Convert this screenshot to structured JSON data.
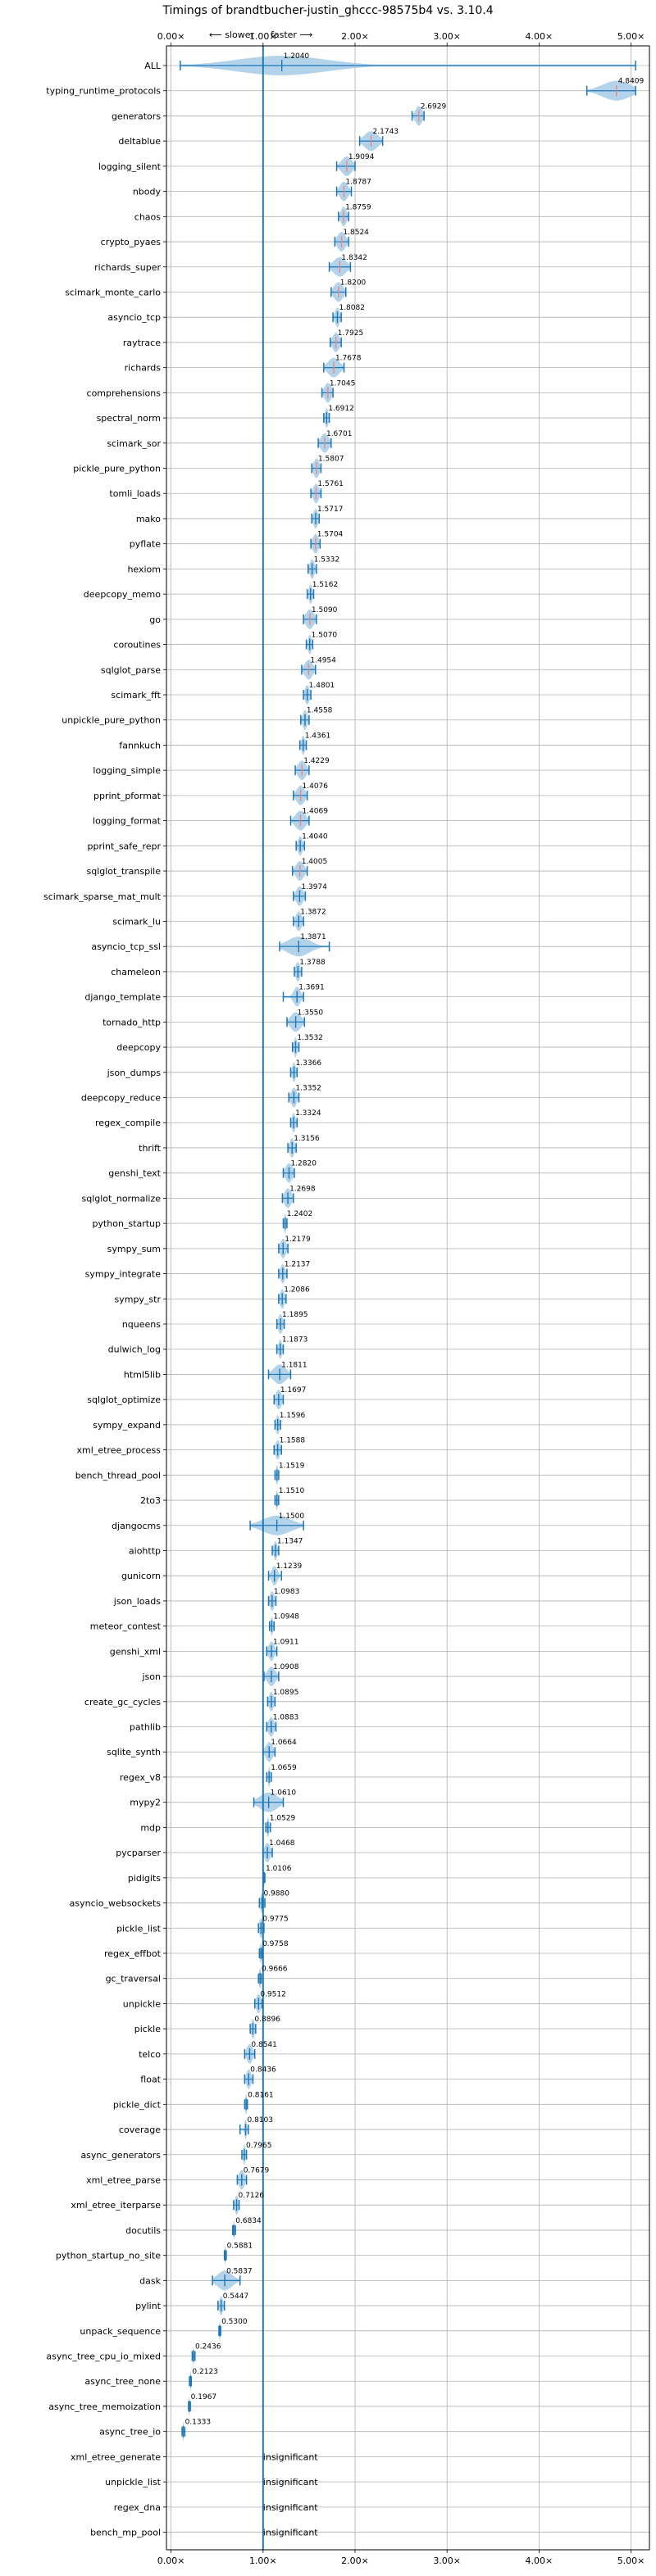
{
  "chart_data": {
    "type": "violin",
    "title": "Timings of brandtbucher-justin_ghccc-98575b4 vs. 3.10.4",
    "direction_labels": {
      "slower": "⟵ slower",
      "faster": "faster ⟶"
    },
    "xlim": [
      -0.05,
      5.2
    ],
    "x_ticks": [
      0,
      1,
      2,
      3,
      4,
      5
    ],
    "x_tick_labels": [
      "0.00×",
      "1.00×",
      "2.00×",
      "3.00×",
      "4.00×",
      "5.00×"
    ],
    "grid": true,
    "reference_line": 1.0,
    "insignificant_label": "insignificant",
    "benchmarks": [
      {
        "name": "ALL",
        "value": 1.204,
        "label": "1.2040",
        "lo": 0.1,
        "hi": 5.05,
        "spread": 0.8
      },
      {
        "name": "typing_runtime_protocols",
        "value": 4.8409,
        "label": "4.8409",
        "lo": 4.52,
        "hi": 5.05,
        "spread": 0.25
      },
      {
        "name": "generators",
        "value": 2.6929,
        "label": "2.6929",
        "lo": 2.62,
        "hi": 2.75,
        "spread": 0.06
      },
      {
        "name": "deltablue",
        "value": 2.1743,
        "label": "2.1743",
        "lo": 2.05,
        "hi": 2.3,
        "spread": 0.12
      },
      {
        "name": "logging_silent",
        "value": 1.9094,
        "label": "1.9094",
        "lo": 1.8,
        "hi": 2.0,
        "spread": 0.09
      },
      {
        "name": "nbody",
        "value": 1.8787,
        "label": "1.8787",
        "lo": 1.8,
        "hi": 1.96,
        "spread": 0.07
      },
      {
        "name": "chaos",
        "value": 1.8759,
        "label": "1.8759",
        "lo": 1.82,
        "hi": 1.93,
        "spread": 0.05
      },
      {
        "name": "crypto_pyaes",
        "value": 1.8524,
        "label": "1.8524",
        "lo": 1.78,
        "hi": 1.93,
        "spread": 0.07
      },
      {
        "name": "richards_super",
        "value": 1.8342,
        "label": "1.8342",
        "lo": 1.72,
        "hi": 1.95,
        "spread": 0.11
      },
      {
        "name": "scimark_monte_carlo",
        "value": 1.82,
        "label": "1.8200",
        "lo": 1.74,
        "hi": 1.9,
        "spread": 0.08
      },
      {
        "name": "asyncio_tcp",
        "value": 1.8082,
        "label": "1.8082",
        "lo": 1.76,
        "hi": 1.85,
        "spread": 0.04
      },
      {
        "name": "raytrace",
        "value": 1.7925,
        "label": "1.7925",
        "lo": 1.73,
        "hi": 1.85,
        "spread": 0.06
      },
      {
        "name": "richards",
        "value": 1.7678,
        "label": "1.7678",
        "lo": 1.66,
        "hi": 1.88,
        "spread": 0.1
      },
      {
        "name": "comprehensions",
        "value": 1.7045,
        "label": "1.7045",
        "lo": 1.64,
        "hi": 1.76,
        "spread": 0.06
      },
      {
        "name": "spectral_norm",
        "value": 1.6912,
        "label": "1.6912",
        "lo": 1.66,
        "hi": 1.72,
        "spread": 0.03
      },
      {
        "name": "scimark_sor",
        "value": 1.6701,
        "label": "1.6701",
        "lo": 1.6,
        "hi": 1.74,
        "spread": 0.07
      },
      {
        "name": "pickle_pure_python",
        "value": 1.5807,
        "label": "1.5807",
        "lo": 1.53,
        "hi": 1.63,
        "spread": 0.05
      },
      {
        "name": "tomli_loads",
        "value": 1.5761,
        "label": "1.5761",
        "lo": 1.52,
        "hi": 1.63,
        "spread": 0.05
      },
      {
        "name": "mako",
        "value": 1.5717,
        "label": "1.5717",
        "lo": 1.53,
        "hi": 1.61,
        "spread": 0.04
      },
      {
        "name": "pyflate",
        "value": 1.5704,
        "label": "1.5704",
        "lo": 1.52,
        "hi": 1.62,
        "spread": 0.05
      },
      {
        "name": "hexiom",
        "value": 1.5332,
        "label": "1.5332",
        "lo": 1.49,
        "hi": 1.58,
        "spread": 0.04
      },
      {
        "name": "deepcopy_memo",
        "value": 1.5162,
        "label": "1.5162",
        "lo": 1.48,
        "hi": 1.55,
        "spread": 0.03
      },
      {
        "name": "go",
        "value": 1.509,
        "label": "1.5090",
        "lo": 1.44,
        "hi": 1.58,
        "spread": 0.07
      },
      {
        "name": "coroutines",
        "value": 1.507,
        "label": "1.5070",
        "lo": 1.47,
        "hi": 1.54,
        "spread": 0.03
      },
      {
        "name": "sqlglot_parse",
        "value": 1.4954,
        "label": "1.4954",
        "lo": 1.42,
        "hi": 1.57,
        "spread": 0.07
      },
      {
        "name": "scimark_fft",
        "value": 1.4801,
        "label": "1.4801",
        "lo": 1.44,
        "hi": 1.52,
        "spread": 0.04
      },
      {
        "name": "unpickle_pure_python",
        "value": 1.4558,
        "label": "1.4558",
        "lo": 1.41,
        "hi": 1.5,
        "spread": 0.04
      },
      {
        "name": "fannkuch",
        "value": 1.4361,
        "label": "1.4361",
        "lo": 1.4,
        "hi": 1.47,
        "spread": 0.03
      },
      {
        "name": "logging_simple",
        "value": 1.4229,
        "label": "1.4229",
        "lo": 1.35,
        "hi": 1.5,
        "spread": 0.07
      },
      {
        "name": "pprint_pformat",
        "value": 1.4076,
        "label": "1.4076",
        "lo": 1.33,
        "hi": 1.48,
        "spread": 0.07
      },
      {
        "name": "logging_format",
        "value": 1.4069,
        "label": "1.4069",
        "lo": 1.3,
        "hi": 1.5,
        "spread": 0.09
      },
      {
        "name": "pprint_safe_repr",
        "value": 1.404,
        "label": "1.4040",
        "lo": 1.36,
        "hi": 1.45,
        "spread": 0.04
      },
      {
        "name": "sqlglot_transpile",
        "value": 1.4005,
        "label": "1.4005",
        "lo": 1.32,
        "hi": 1.48,
        "spread": 0.07
      },
      {
        "name": "scimark_sparse_mat_mult",
        "value": 1.3974,
        "label": "1.3974",
        "lo": 1.33,
        "hi": 1.46,
        "spread": 0.06
      },
      {
        "name": "scimark_lu",
        "value": 1.3872,
        "label": "1.3872",
        "lo": 1.33,
        "hi": 1.44,
        "spread": 0.05
      },
      {
        "name": "asyncio_tcp_ssl",
        "value": 1.3871,
        "label": "1.3871",
        "lo": 1.18,
        "hi": 1.72,
        "spread": 0.2
      },
      {
        "name": "chameleon",
        "value": 1.3788,
        "label": "1.3788",
        "lo": 1.34,
        "hi": 1.42,
        "spread": 0.04
      },
      {
        "name": "django_template",
        "value": 1.3691,
        "label": "1.3691",
        "lo": 1.22,
        "hi": 1.44,
        "spread": 0.06
      },
      {
        "name": "tornado_http",
        "value": 1.355,
        "label": "1.3550",
        "lo": 1.26,
        "hi": 1.45,
        "spread": 0.09
      },
      {
        "name": "deepcopy",
        "value": 1.3532,
        "label": "1.3532",
        "lo": 1.32,
        "hi": 1.39,
        "spread": 0.03
      },
      {
        "name": "json_dumps",
        "value": 1.3366,
        "label": "1.3366",
        "lo": 1.3,
        "hi": 1.37,
        "spread": 0.03
      },
      {
        "name": "deepcopy_reduce",
        "value": 1.3352,
        "label": "1.3352",
        "lo": 1.28,
        "hi": 1.39,
        "spread": 0.05
      },
      {
        "name": "regex_compile",
        "value": 1.3324,
        "label": "1.3324",
        "lo": 1.3,
        "hi": 1.37,
        "spread": 0.03
      },
      {
        "name": "thrift",
        "value": 1.3156,
        "label": "1.3156",
        "lo": 1.27,
        "hi": 1.36,
        "spread": 0.04
      },
      {
        "name": "genshi_text",
        "value": 1.282,
        "label": "1.2820",
        "lo": 1.22,
        "hi": 1.34,
        "spread": 0.06
      },
      {
        "name": "sqlglot_normalize",
        "value": 1.2698,
        "label": "1.2698",
        "lo": 1.21,
        "hi": 1.33,
        "spread": 0.06
      },
      {
        "name": "python_startup",
        "value": 1.2402,
        "label": "1.2402",
        "lo": 1.22,
        "hi": 1.26,
        "spread": 0.02
      },
      {
        "name": "sympy_sum",
        "value": 1.2179,
        "label": "1.2179",
        "lo": 1.17,
        "hi": 1.27,
        "spread": 0.05
      },
      {
        "name": "sympy_integrate",
        "value": 1.2137,
        "label": "1.2137",
        "lo": 1.17,
        "hi": 1.26,
        "spread": 0.04
      },
      {
        "name": "sympy_str",
        "value": 1.2086,
        "label": "1.2086",
        "lo": 1.17,
        "hi": 1.25,
        "spread": 0.04
      },
      {
        "name": "nqueens",
        "value": 1.1895,
        "label": "1.1895",
        "lo": 1.15,
        "hi": 1.23,
        "spread": 0.04
      },
      {
        "name": "dulwich_log",
        "value": 1.1873,
        "label": "1.1873",
        "lo": 1.15,
        "hi": 1.22,
        "spread": 0.03
      },
      {
        "name": "html5lib",
        "value": 1.1811,
        "label": "1.1811",
        "lo": 1.06,
        "hi": 1.3,
        "spread": 0.11
      },
      {
        "name": "sqlglot_optimize",
        "value": 1.1697,
        "label": "1.1697",
        "lo": 1.12,
        "hi": 1.22,
        "spread": 0.05
      },
      {
        "name": "sympy_expand",
        "value": 1.1596,
        "label": "1.1596",
        "lo": 1.13,
        "hi": 1.19,
        "spread": 0.03
      },
      {
        "name": "xml_etree_process",
        "value": 1.1588,
        "label": "1.1588",
        "lo": 1.12,
        "hi": 1.2,
        "spread": 0.04
      },
      {
        "name": "bench_thread_pool",
        "value": 1.1519,
        "label": "1.1519",
        "lo": 1.13,
        "hi": 1.17,
        "spread": 0.02
      },
      {
        "name": "2to3",
        "value": 1.151,
        "label": "1.1510",
        "lo": 1.13,
        "hi": 1.17,
        "spread": 0.02
      },
      {
        "name": "djangocms",
        "value": 1.15,
        "label": "1.1500",
        "lo": 0.86,
        "hi": 1.44,
        "spread": 0.25
      },
      {
        "name": "aiohttp",
        "value": 1.1347,
        "label": "1.1347",
        "lo": 1.1,
        "hi": 1.17,
        "spread": 0.03
      },
      {
        "name": "gunicorn",
        "value": 1.1239,
        "label": "1.1239",
        "lo": 1.06,
        "hi": 1.2,
        "spread": 0.05
      },
      {
        "name": "json_loads",
        "value": 1.0983,
        "label": "1.0983",
        "lo": 1.06,
        "hi": 1.14,
        "spread": 0.04
      },
      {
        "name": "meteor_contest",
        "value": 1.0948,
        "label": "1.0948",
        "lo": 1.07,
        "hi": 1.12,
        "spread": 0.02
      },
      {
        "name": "genshi_xml",
        "value": 1.0911,
        "label": "1.0911",
        "lo": 1.04,
        "hi": 1.15,
        "spread": 0.05
      },
      {
        "name": "json",
        "value": 1.0908,
        "label": "1.0908",
        "lo": 1.01,
        "hi": 1.17,
        "spread": 0.07
      },
      {
        "name": "create_gc_cycles",
        "value": 1.0895,
        "label": "1.0895",
        "lo": 1.05,
        "hi": 1.13,
        "spread": 0.04
      },
      {
        "name": "pathlib",
        "value": 1.0883,
        "label": "1.0883",
        "lo": 1.04,
        "hi": 1.14,
        "spread": 0.05
      },
      {
        "name": "sqlite_synth",
        "value": 1.0664,
        "label": "1.0664",
        "lo": 1.0,
        "hi": 1.13,
        "spread": 0.06
      },
      {
        "name": "regex_v8",
        "value": 1.0659,
        "label": "1.0659",
        "lo": 1.04,
        "hi": 1.09,
        "spread": 0.02
      },
      {
        "name": "mypy2",
        "value": 1.061,
        "label": "1.0610",
        "lo": 0.9,
        "hi": 1.22,
        "spread": 0.16
      },
      {
        "name": "mdp",
        "value": 1.0529,
        "label": "1.0529",
        "lo": 1.03,
        "hi": 1.08,
        "spread": 0.02
      },
      {
        "name": "pycparser",
        "value": 1.0468,
        "label": "1.0468",
        "lo": 1.0,
        "hi": 1.1,
        "spread": 0.05
      },
      {
        "name": "pidigits",
        "value": 1.0106,
        "label": "1.0106",
        "lo": 1.0,
        "hi": 1.02,
        "spread": 0.01
      },
      {
        "name": "asyncio_websockets",
        "value": 0.988,
        "label": "0.9880",
        "lo": 0.96,
        "hi": 1.02,
        "spread": 0.03
      },
      {
        "name": "pickle_list",
        "value": 0.9775,
        "label": "0.9775",
        "lo": 0.95,
        "hi": 1.01,
        "spread": 0.03
      },
      {
        "name": "regex_effbot",
        "value": 0.9758,
        "label": "0.9758",
        "lo": 0.96,
        "hi": 0.99,
        "spread": 0.02
      },
      {
        "name": "gc_traversal",
        "value": 0.9666,
        "label": "0.9666",
        "lo": 0.95,
        "hi": 0.98,
        "spread": 0.02
      },
      {
        "name": "unpickle",
        "value": 0.9512,
        "label": "0.9512",
        "lo": 0.91,
        "hi": 0.99,
        "spread": 0.04
      },
      {
        "name": "pickle",
        "value": 0.8896,
        "label": "0.8896",
        "lo": 0.86,
        "hi": 0.92,
        "spread": 0.03
      },
      {
        "name": "telco",
        "value": 0.8541,
        "label": "0.8541",
        "lo": 0.8,
        "hi": 0.91,
        "spread": 0.05
      },
      {
        "name": "float",
        "value": 0.8436,
        "label": "0.8436",
        "lo": 0.8,
        "hi": 0.89,
        "spread": 0.04
      },
      {
        "name": "pickle_dict",
        "value": 0.8161,
        "label": "0.8161",
        "lo": 0.8,
        "hi": 0.83,
        "spread": 0.02
      },
      {
        "name": "coverage",
        "value": 0.8103,
        "label": "0.8103",
        "lo": 0.75,
        "hi": 0.84,
        "spread": 0.02
      },
      {
        "name": "async_generators",
        "value": 0.7965,
        "label": "0.7965",
        "lo": 0.77,
        "hi": 0.82,
        "spread": 0.02
      },
      {
        "name": "xml_etree_parse",
        "value": 0.7679,
        "label": "0.7679",
        "lo": 0.72,
        "hi": 0.82,
        "spread": 0.05
      },
      {
        "name": "xml_etree_iterparse",
        "value": 0.7126,
        "label": "0.7126",
        "lo": 0.68,
        "hi": 0.74,
        "spread": 0.03
      },
      {
        "name": "docutils",
        "value": 0.6834,
        "label": "0.6834",
        "lo": 0.67,
        "hi": 0.7,
        "spread": 0.01
      },
      {
        "name": "python_startup_no_site",
        "value": 0.5881,
        "label": "0.5881",
        "lo": 0.58,
        "hi": 0.6,
        "spread": 0.01
      },
      {
        "name": "dask",
        "value": 0.5837,
        "label": "0.5837",
        "lo": 0.45,
        "hi": 0.75,
        "spread": 0.13
      },
      {
        "name": "pylint",
        "value": 0.5447,
        "label": "0.5447",
        "lo": 0.51,
        "hi": 0.58,
        "spread": 0.03
      },
      {
        "name": "unpack_sequence",
        "value": 0.53,
        "label": "0.5300",
        "lo": 0.52,
        "hi": 0.54,
        "spread": 0.01
      },
      {
        "name": "async_tree_cpu_io_mixed",
        "value": 0.2436,
        "label": "0.2436",
        "lo": 0.23,
        "hi": 0.26,
        "spread": 0.01
      },
      {
        "name": "async_tree_none",
        "value": 0.2123,
        "label": "0.2123",
        "lo": 0.2,
        "hi": 0.22,
        "spread": 0.01
      },
      {
        "name": "async_tree_memoization",
        "value": 0.1967,
        "label": "0.1967",
        "lo": 0.19,
        "hi": 0.21,
        "spread": 0.01
      },
      {
        "name": "async_tree_io",
        "value": 0.1333,
        "label": "0.1333",
        "lo": 0.12,
        "hi": 0.15,
        "spread": 0.01
      },
      {
        "name": "xml_etree_generate",
        "value": null,
        "label": "insignificant"
      },
      {
        "name": "unpickle_list",
        "value": null,
        "label": "insignificant"
      },
      {
        "name": "regex_dna",
        "value": null,
        "label": "insignificant"
      },
      {
        "name": "bench_mp_pool",
        "value": null,
        "label": "insignificant"
      }
    ]
  }
}
